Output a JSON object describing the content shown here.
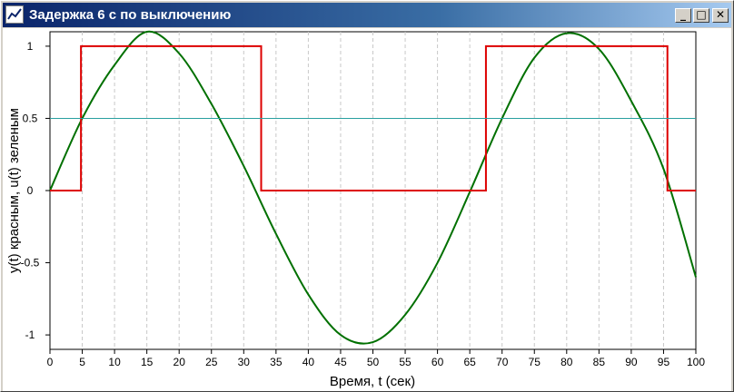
{
  "window": {
    "title": "Задержка 6 с по выключению",
    "icon": "app-graph-icon",
    "controls": {
      "minimize": "_",
      "maximize": "□",
      "close": "✕"
    }
  },
  "chart_data": {
    "type": "line",
    "xlabel": "Время, t (сек)",
    "ylabel": "y(t) красным, u(t) зеленым",
    "xlim": [
      0,
      100
    ],
    "ylim": [
      -1.1,
      1.1
    ],
    "x_ticks": [
      0,
      5,
      10,
      15,
      20,
      25,
      30,
      35,
      40,
      45,
      50,
      55,
      60,
      65,
      70,
      75,
      80,
      85,
      90,
      95,
      100
    ],
    "y_ticks": [
      1,
      0.5,
      0,
      -0.5,
      -1
    ],
    "y_tick_labels": [
      "1",
      "0.5",
      "0",
      "-0.5",
      "-1"
    ],
    "grid": "vertical dashed",
    "series": [
      {
        "color": "#007000",
        "x": [
          0,
          5,
          10,
          15,
          20,
          25,
          30,
          35,
          40,
          45,
          50,
          55,
          60,
          65,
          70,
          75,
          80,
          85,
          90,
          95,
          100
        ],
        "values": [
          0,
          0.5,
          0.87,
          1.1,
          0.95,
          0.6,
          0.17,
          -0.3,
          -0.72,
          -1.0,
          -1.05,
          -0.86,
          -0.5,
          -0.01,
          0.5,
          0.92,
          1.09,
          0.98,
          0.62,
          0.15,
          -0.6
        ]
      },
      {
        "color": "#dd0000",
        "x": [
          0,
          4.8,
          4.8,
          32.7,
          32.7,
          67.5,
          67.5,
          95.6,
          95.6,
          100
        ],
        "values": [
          0,
          0,
          1,
          1,
          0,
          0,
          1,
          1,
          0,
          0
        ]
      },
      {
        "color": "#2aa0a0",
        "x": [
          0,
          100
        ],
        "values": [
          0.5,
          0.5
        ]
      }
    ]
  }
}
